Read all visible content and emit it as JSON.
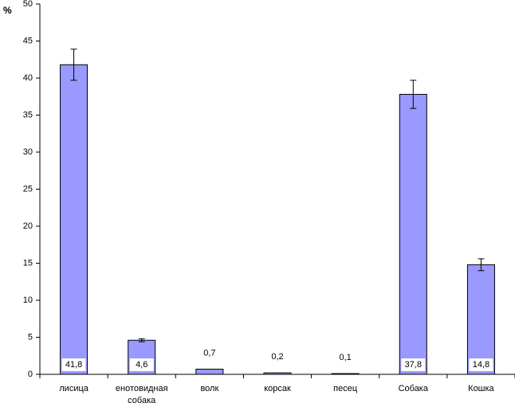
{
  "chart_data": {
    "type": "bar",
    "y_label": "%",
    "categories": [
      "лисица",
      "енотовидная собака",
      "волк",
      "корсак",
      "песец",
      "Собака",
      "Кошка"
    ],
    "values": [
      41.8,
      4.6,
      0.7,
      0.2,
      0.1,
      37.8,
      14.8
    ],
    "value_labels": [
      "41,8",
      "4,6",
      "0,7",
      "0,2",
      "0,1",
      "37,8",
      "14,8"
    ],
    "errors": [
      2.1,
      0.2,
      null,
      null,
      null,
      1.9,
      0.8
    ],
    "color": "#9999ff",
    "ylim": [
      0,
      50
    ],
    "yticks": [
      0,
      5,
      10,
      15,
      20,
      25,
      30,
      35,
      40,
      45,
      50
    ],
    "grid": false
  }
}
